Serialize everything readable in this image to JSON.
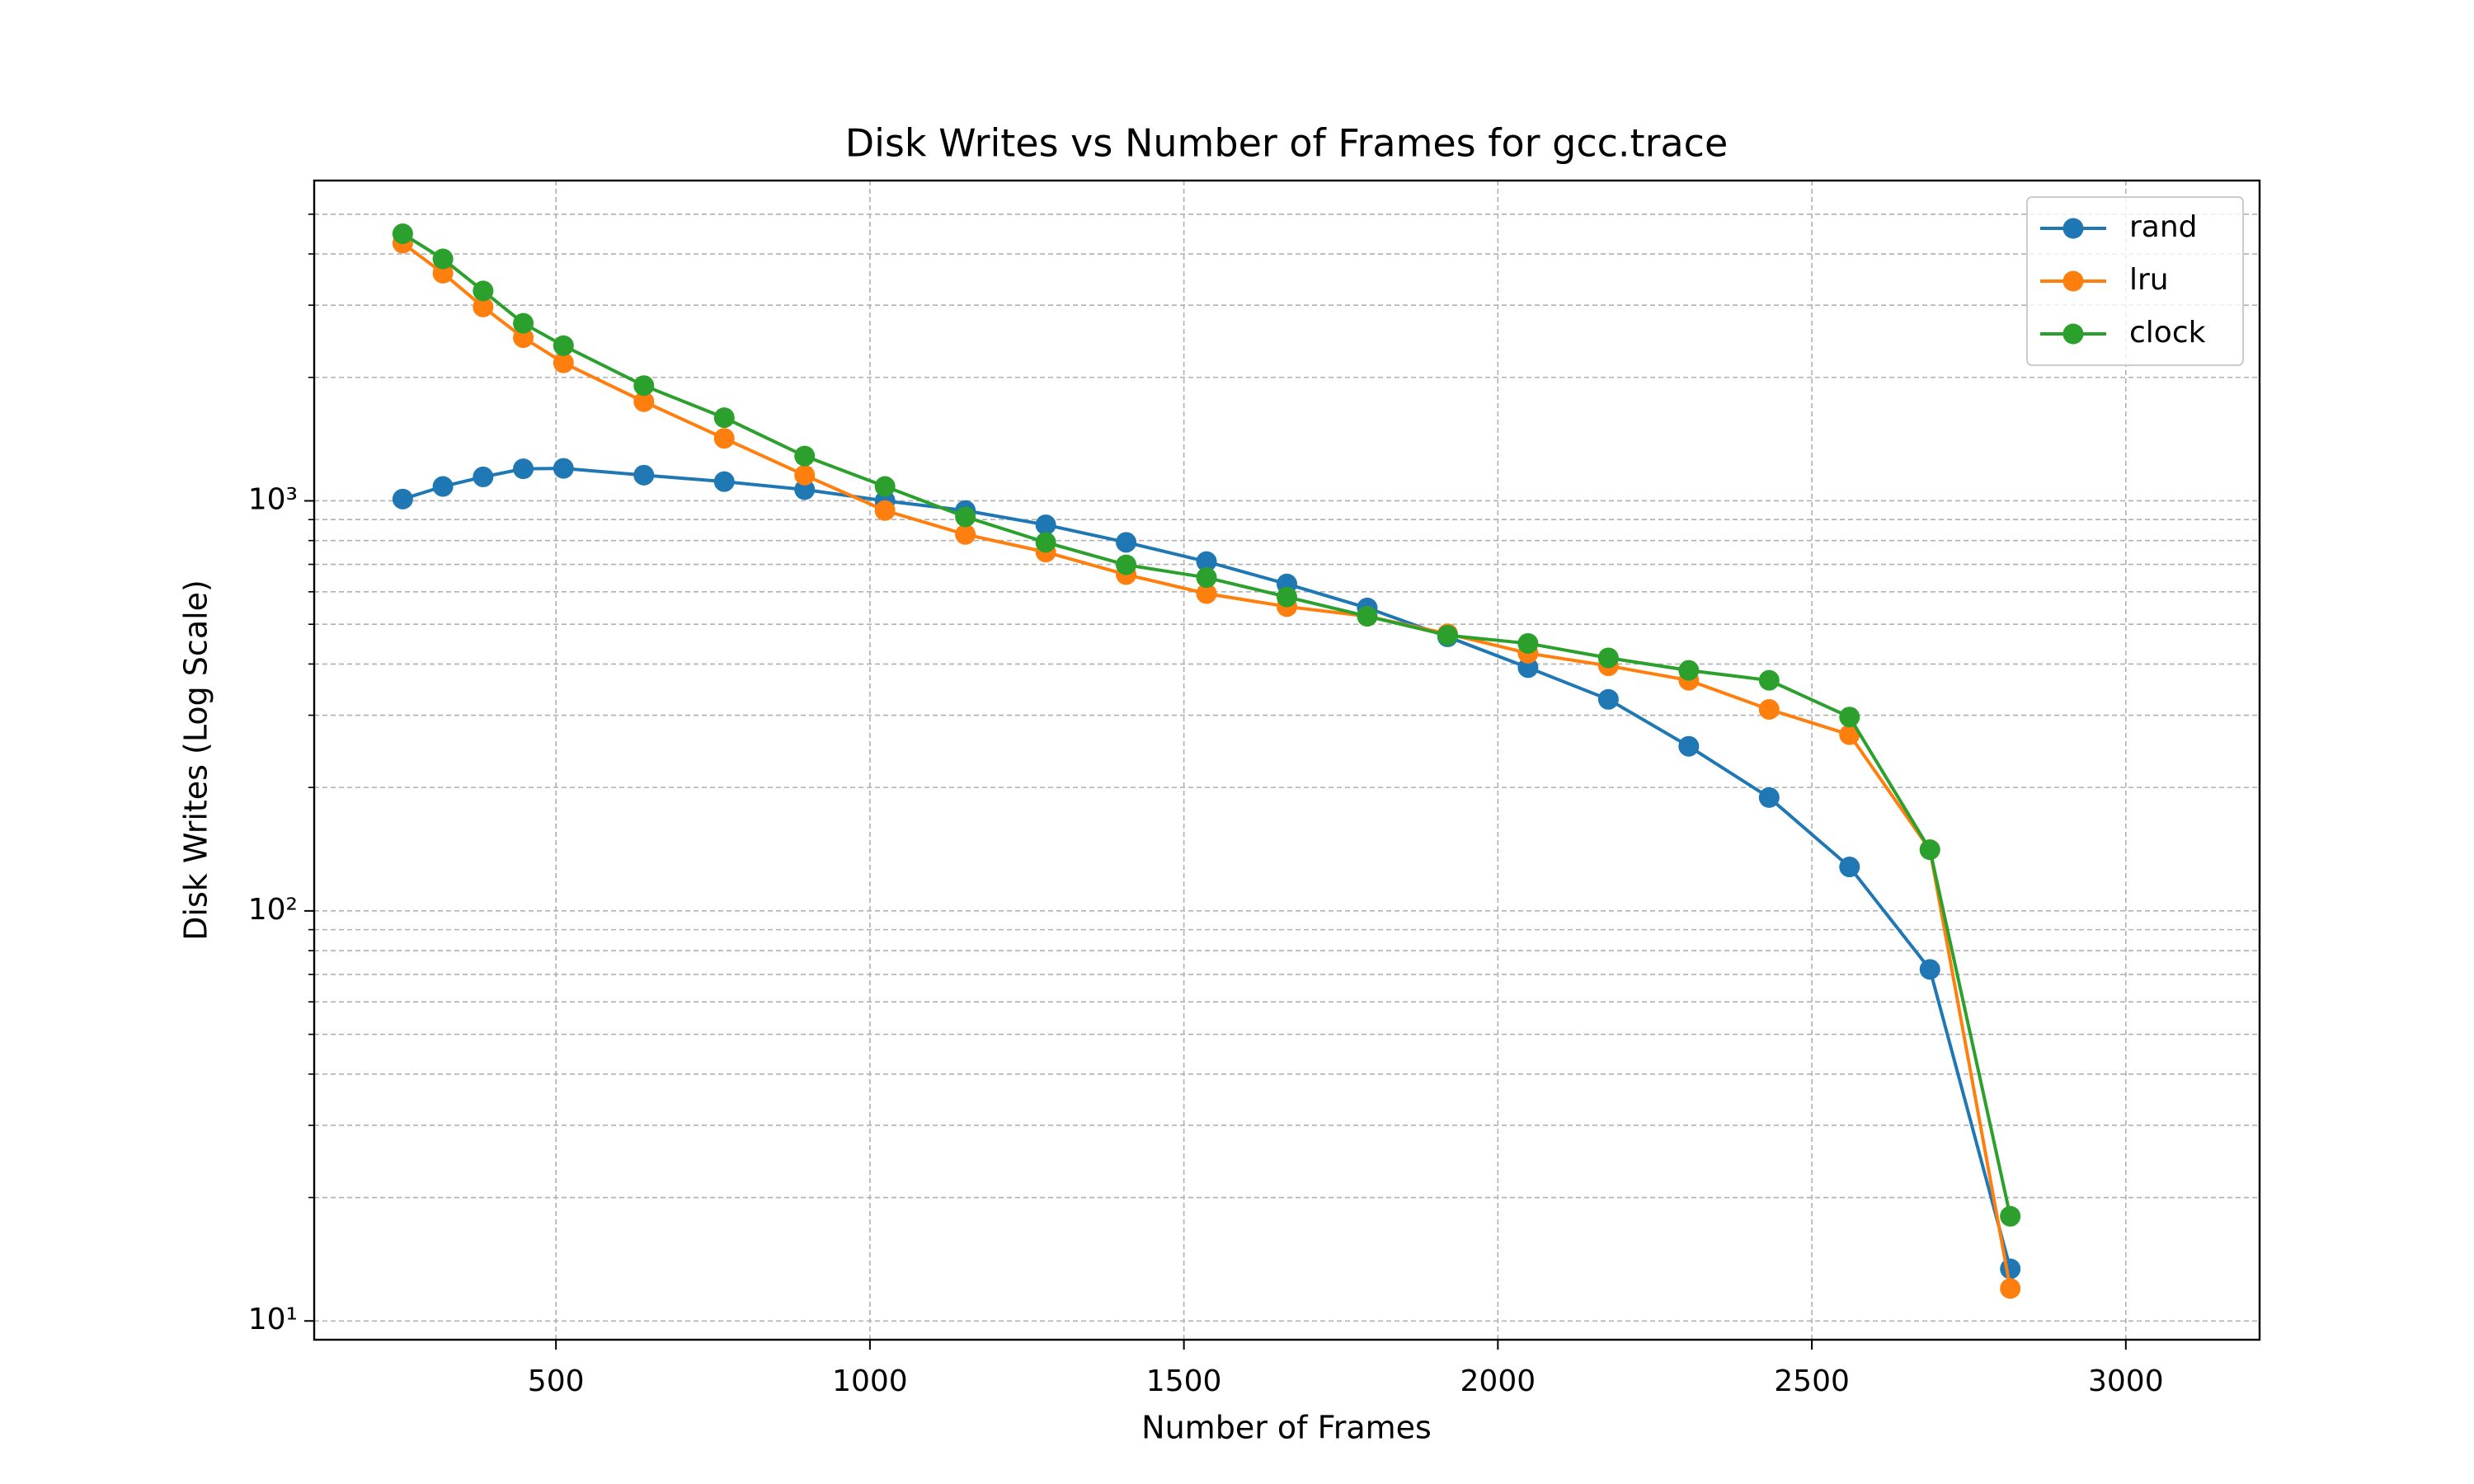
{
  "chart_data": {
    "type": "line",
    "title": "Disk Writes vs Number of Frames for gcc.trace",
    "x_label": "Number of Frames",
    "y_label": "Disk Writes (Log Scale)",
    "x": [
      256,
      320,
      384,
      448,
      512,
      640,
      768,
      896,
      1024,
      1152,
      1280,
      1408,
      1536,
      1664,
      1792,
      1920,
      2048,
      2176,
      2304,
      2432,
      2560,
      2688,
      2816
    ],
    "series": [
      {
        "name": "rand",
        "color": "#1f77b4",
        "values": [
          1010,
          1084,
          1144,
          1197,
          1200,
          1155,
          1114,
          1065,
          1000,
          947,
          874,
          792,
          711,
          627,
          548,
          466,
          392,
          328,
          252,
          189,
          128,
          72,
          13.4
        ]
      },
      {
        "name": "lru",
        "color": "#ff7f0e",
        "values": [
          4250,
          3590,
          2970,
          2500,
          2170,
          1745,
          1420,
          1155,
          947,
          828,
          750,
          661,
          594,
          552,
          523,
          474,
          425,
          396,
          365,
          310,
          269,
          141,
          12
        ]
      },
      {
        "name": "clock",
        "color": "#2ca02c",
        "values": [
          4480,
          3890,
          3250,
          2710,
          2390,
          1910,
          1595,
          1286,
          1084,
          914,
          792,
          698,
          650,
          583,
          523,
          470,
          449,
          414,
          386,
          365,
          297,
          141,
          18
        ]
      }
    ],
    "xlim": [
      115,
      3213
    ],
    "ylim": [
      9,
      6040
    ],
    "ylog": true,
    "xticks": [
      500,
      1000,
      1500,
      2000,
      2500,
      3000
    ],
    "yticks": [
      {
        "value": 10,
        "label": "10¹"
      },
      {
        "value": 100,
        "label": "10²"
      },
      {
        "value": 1000,
        "label": "10³"
      }
    ],
    "yminorticks": [
      20,
      30,
      40,
      50,
      60,
      70,
      80,
      90,
      200,
      300,
      400,
      500,
      600,
      700,
      800,
      900,
      2000,
      3000,
      4000,
      5000
    ],
    "grid": true,
    "legend": "upper right"
  }
}
